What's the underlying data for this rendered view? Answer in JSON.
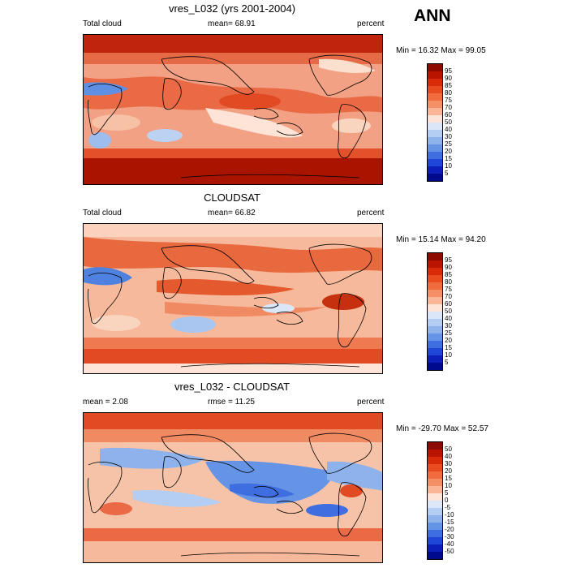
{
  "season": "ANN",
  "panels": [
    {
      "title": "vres_L032 (yrs 2001-2004)",
      "left_label": "Total cloud",
      "center_label": "mean=  68.91",
      "right_label": "percent",
      "minmax": "Min = 16.32 Max = 99.05",
      "levels": [
        "95",
        "90",
        "85",
        "80",
        "75",
        "70",
        "60",
        "50",
        "40",
        "30",
        "25",
        "20",
        "15",
        "10",
        "5"
      ],
      "colors": [
        "#8c0a00",
        "#b81400",
        "#d92b0a",
        "#e84b1e",
        "#f06c3f",
        "#f58f66",
        "#f9b595",
        "#fde4d6",
        "#dbe7f8",
        "#b3cef2",
        "#8db2ec",
        "#6594e6",
        "#3f6ee0",
        "#2046d8",
        "#0c1fb8",
        "#000a8c"
      ]
    },
    {
      "title": "CLOUDSAT",
      "left_label": "Total cloud",
      "center_label": "mean=  66.82",
      "right_label": "percent",
      "minmax": "Min = 15.14 Max = 94.20",
      "levels": [
        "95",
        "90",
        "85",
        "80",
        "75",
        "70",
        "60",
        "50",
        "40",
        "30",
        "25",
        "20",
        "15",
        "10",
        "5"
      ],
      "colors": [
        "#8c0a00",
        "#b81400",
        "#d92b0a",
        "#e84b1e",
        "#f06c3f",
        "#f58f66",
        "#f9b595",
        "#fde4d6",
        "#dbe7f8",
        "#b3cef2",
        "#8db2ec",
        "#6594e6",
        "#3f6ee0",
        "#2046d8",
        "#0c1fb8",
        "#000a8c"
      ]
    },
    {
      "title": "vres_L032 - CLOUDSAT",
      "left_label": "mean =   2.08",
      "center_label": "rmse =  11.25",
      "right_label": "percent",
      "minmax": "Min = -29.70 Max =  52.57",
      "levels": [
        "50",
        "40",
        "30",
        "20",
        "15",
        "10",
        "5",
        "0",
        "-5",
        "-10",
        "-15",
        "-20",
        "-30",
        "-40",
        "-50"
      ],
      "colors": [
        "#8c0a00",
        "#b81400",
        "#d92b0a",
        "#e84b1e",
        "#f06c3f",
        "#f58f66",
        "#f9b595",
        "#fde4d6",
        "#dbe7f8",
        "#b3cef2",
        "#8db2ec",
        "#6594e6",
        "#3f6ee0",
        "#2046d8",
        "#0c1fb8",
        "#000a8c"
      ]
    }
  ]
}
